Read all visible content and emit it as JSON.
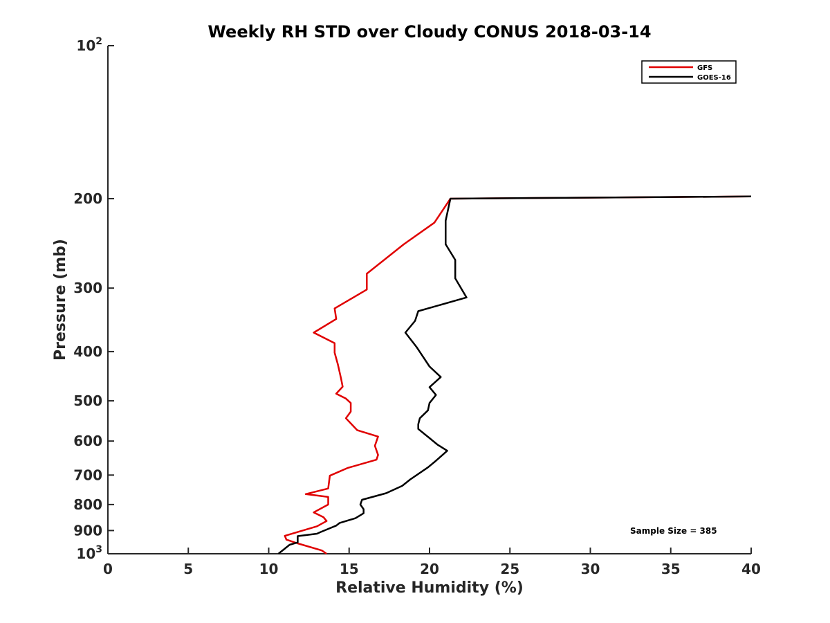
{
  "chart_data": {
    "type": "line",
    "title": "Weekly RH STD over Cloudy CONUS 2018-03-14",
    "xlabel": "Relative Humidity (%)",
    "ylabel": "Pressure (mb)",
    "xlim": [
      0,
      40
    ],
    "ylim": [
      100,
      1000
    ],
    "y_scale": "log",
    "y_reversed": true,
    "x_ticks": [
      0,
      5,
      10,
      15,
      20,
      25,
      30,
      35,
      40
    ],
    "x_tick_labels": [
      "0",
      "5",
      "10",
      "15",
      "20",
      "25",
      "30",
      "35",
      "40"
    ],
    "y_ticks": [
      100,
      200,
      300,
      400,
      500,
      600,
      700,
      800,
      900,
      1000
    ],
    "y_tick_labels": [
      {
        "base": "10",
        "exp": "2"
      },
      {
        "base": "200"
      },
      {
        "base": "300"
      },
      {
        "base": "400"
      },
      {
        "base": "500"
      },
      {
        "base": "600"
      },
      {
        "base": "700"
      },
      {
        "base": "800"
      },
      {
        "base": "900"
      },
      {
        "base": "10",
        "exp": "3"
      }
    ],
    "grid": false,
    "legend_position": "top-right",
    "annotation": "Sample Size = 385",
    "series": [
      {
        "name": "GFS",
        "color": "#e00000",
        "points": [
          [
            40.0,
            198
          ],
          [
            21.3,
            200
          ],
          [
            20.3,
            223
          ],
          [
            18.4,
            246
          ],
          [
            16.1,
            281
          ],
          [
            16.1,
            302
          ],
          [
            14.1,
            329
          ],
          [
            14.2,
            345
          ],
          [
            12.8,
            367
          ],
          [
            14.1,
            385
          ],
          [
            14.1,
            402
          ],
          [
            14.3,
            424
          ],
          [
            14.5,
            452
          ],
          [
            14.6,
            469
          ],
          [
            14.2,
            484
          ],
          [
            14.8,
            495
          ],
          [
            15.1,
            505
          ],
          [
            15.1,
            525
          ],
          [
            14.8,
            541
          ],
          [
            15.5,
            571
          ],
          [
            16.8,
            588
          ],
          [
            16.6,
            613
          ],
          [
            16.8,
            639
          ],
          [
            16.7,
            653
          ],
          [
            14.9,
            678
          ],
          [
            13.8,
            702
          ],
          [
            13.7,
            744
          ],
          [
            12.3,
            763
          ],
          [
            13.7,
            773
          ],
          [
            13.7,
            800
          ],
          [
            12.8,
            829
          ],
          [
            13.4,
            847
          ],
          [
            13.6,
            862
          ],
          [
            13.0,
            883
          ],
          [
            11.0,
            922
          ],
          [
            11.1,
            938
          ],
          [
            11.8,
            954
          ],
          [
            13.3,
            985
          ],
          [
            13.6,
            1000
          ]
        ]
      },
      {
        "name": "GOES-16",
        "color": "#000000",
        "points": [
          [
            40.0,
            198
          ],
          [
            21.3,
            200
          ],
          [
            21.0,
            221
          ],
          [
            21.0,
            246
          ],
          [
            21.6,
            264
          ],
          [
            21.6,
            287
          ],
          [
            22.3,
            313
          ],
          [
            19.3,
            333
          ],
          [
            19.1,
            348
          ],
          [
            18.5,
            367
          ],
          [
            19.2,
            392
          ],
          [
            20.0,
            428
          ],
          [
            20.7,
            449
          ],
          [
            20.0,
            470
          ],
          [
            20.4,
            487
          ],
          [
            20.0,
            505
          ],
          [
            19.9,
            522
          ],
          [
            19.4,
            541
          ],
          [
            19.3,
            556
          ],
          [
            19.3,
            568
          ],
          [
            20.0,
            592
          ],
          [
            20.5,
            610
          ],
          [
            21.1,
            627
          ],
          [
            20.4,
            656
          ],
          [
            19.9,
            676
          ],
          [
            18.8,
            714
          ],
          [
            18.3,
            735
          ],
          [
            17.3,
            760
          ],
          [
            15.8,
            783
          ],
          [
            15.7,
            800
          ],
          [
            15.9,
            817
          ],
          [
            15.9,
            832
          ],
          [
            15.4,
            851
          ],
          [
            14.4,
            870
          ],
          [
            14.2,
            880
          ],
          [
            13.2,
            907
          ],
          [
            13.0,
            913
          ],
          [
            11.8,
            923
          ],
          [
            11.8,
            950
          ],
          [
            11.3,
            960
          ],
          [
            10.6,
            1000
          ]
        ]
      }
    ]
  }
}
